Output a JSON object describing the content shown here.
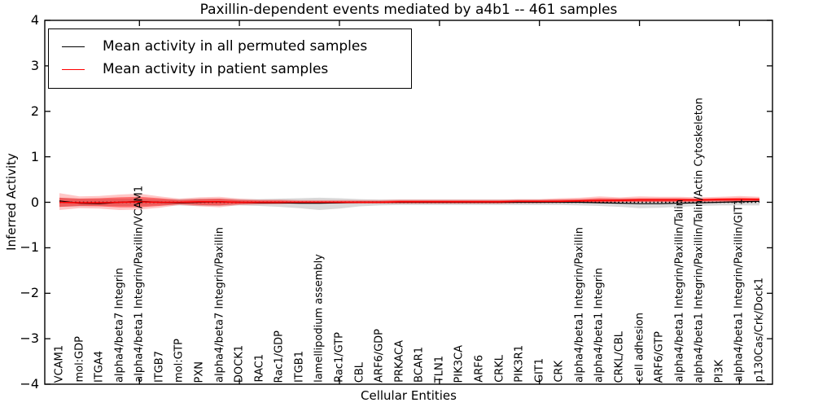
{
  "figure": {
    "title": "Paxillin-dependent events mediated by a4b1 -- 461 samples",
    "xlabel": "Cellular Entities",
    "ylabel": "Inferred Activity"
  },
  "legend": {
    "entries": [
      {
        "label": "Mean activity in all permuted samples",
        "color": "#000000"
      },
      {
        "label": "Mean activity in patient samples",
        "color": "#ff0000"
      }
    ]
  },
  "chart_data": {
    "type": "line",
    "title": "Paxillin-dependent events mediated by a4b1 -- 461 samples",
    "xlabel": "Cellular Entities",
    "ylabel": "Inferred Activity",
    "ylim": [
      -4,
      4
    ],
    "yticks": [
      -4,
      -3,
      -2,
      -1,
      0,
      1,
      2,
      3,
      4
    ],
    "yticklabels": [
      "−4",
      "−3",
      "−2",
      "−1",
      "0",
      "1",
      "2",
      "3",
      "4"
    ],
    "grid": false,
    "legend_position": "upper left",
    "x_major_tick_indices": [
      4,
      9,
      14,
      19,
      24,
      29,
      34
    ],
    "zero_line": {
      "value": 0,
      "style": "dotted",
      "color": "#000000"
    },
    "categories": [
      "VCAM1",
      "mol:GDP",
      "ITGA4",
      "alpha4/beta7 Integrin",
      "alpha4/beta1 Integrin/Paxillin/VCAM1",
      "ITGB7",
      "mol:GTP",
      "PXN",
      "alpha4/beta7 Integrin/Paxillin",
      "DOCK1",
      "RAC1",
      "Rac1/GDP",
      "ITGB1",
      "lamellipodium assembly",
      "Rac1/GTP",
      "CBL",
      "ARF6/GDP",
      "PRKACA",
      "BCAR1",
      "TLN1",
      "PIK3CA",
      "ARF6",
      "CRKL",
      "PIK3R1",
      "GIT1",
      "CRK",
      "alpha4/beta1 Integrin/Paxillin",
      "alpha4/beta1 Integrin",
      "CRKL/CBL",
      "cell adhesion",
      "ARF6/GTP",
      "alpha4/beta1 Integrin/Paxillin/Talin",
      "alpha4/beta1 Integrin/Paxillin/Talin/Actin Cytoskeleton",
      "PI3K",
      "alpha4/beta1 Integrin/Paxillin/GIT1",
      "p130Cas/Crk/Dock1"
    ],
    "series": [
      {
        "name": "Mean activity in all permuted samples",
        "color": "#000000",
        "style": "solid",
        "values": [
          0.03,
          -0.02,
          -0.03,
          0.0,
          0.02,
          0.0,
          -0.01,
          0.0,
          0.01,
          0.0,
          -0.01,
          -0.01,
          -0.02,
          -0.02,
          -0.01,
          0.0,
          0.0,
          0.0,
          0.0,
          0.0,
          0.0,
          0.0,
          0.0,
          0.0,
          0.0,
          0.0,
          0.0,
          -0.01,
          -0.02,
          -0.03,
          -0.03,
          -0.02,
          -0.01,
          0.0,
          0.01,
          0.02
        ]
      },
      {
        "name": "Mean activity in patient samples",
        "color": "#ff0000",
        "style": "solid",
        "values": [
          0.0,
          -0.01,
          -0.01,
          0.0,
          0.01,
          0.0,
          0.0,
          0.01,
          0.01,
          0.0,
          0.0,
          0.0,
          0.0,
          0.0,
          0.0,
          0.0,
          0.0,
          0.01,
          0.01,
          0.01,
          0.01,
          0.01,
          0.01,
          0.02,
          0.02,
          0.02,
          0.03,
          0.04,
          0.04,
          0.05,
          0.05,
          0.05,
          0.05,
          0.06,
          0.06,
          0.06
        ]
      }
    ],
    "bands": [
      {
        "name": "permuted-samples-range",
        "color": "#000000",
        "opacity": 0.15,
        "lower": [
          -0.1,
          -0.09,
          -0.08,
          -0.08,
          -0.08,
          -0.07,
          -0.07,
          -0.08,
          -0.08,
          -0.07,
          -0.08,
          -0.1,
          -0.13,
          -0.17,
          -0.14,
          -0.09,
          -0.07,
          -0.06,
          -0.06,
          -0.06,
          -0.06,
          -0.06,
          -0.06,
          -0.06,
          -0.06,
          -0.06,
          -0.07,
          -0.08,
          -0.1,
          -0.13,
          -0.12,
          -0.1,
          -0.08,
          -0.07,
          -0.07,
          -0.07
        ],
        "upper": [
          0.1,
          0.08,
          0.08,
          0.08,
          0.08,
          0.07,
          0.07,
          0.08,
          0.08,
          0.07,
          0.07,
          0.08,
          0.09,
          0.1,
          0.09,
          0.07,
          0.06,
          0.06,
          0.06,
          0.06,
          0.06,
          0.06,
          0.06,
          0.06,
          0.06,
          0.06,
          0.06,
          0.07,
          0.08,
          0.08,
          0.08,
          0.08,
          0.07,
          0.07,
          0.07,
          0.08
        ]
      },
      {
        "name": "patient-samples-range-outer",
        "color": "#ff0000",
        "opacity": 0.22,
        "lower": [
          -0.17,
          -0.13,
          -0.14,
          -0.17,
          -0.16,
          -0.12,
          -0.06,
          -0.09,
          -0.11,
          -0.06,
          -0.05,
          -0.04,
          -0.03,
          -0.03,
          -0.03,
          -0.03,
          -0.03,
          -0.03,
          -0.03,
          -0.03,
          -0.03,
          -0.03,
          -0.03,
          -0.02,
          -0.02,
          -0.01,
          -0.01,
          -0.01,
          0.0,
          0.0,
          0.0,
          0.0,
          0.01,
          0.01,
          0.01,
          0.01
        ],
        "upper": [
          0.2,
          0.13,
          0.14,
          0.17,
          0.19,
          0.13,
          0.08,
          0.11,
          0.12,
          0.08,
          0.06,
          0.06,
          0.05,
          0.05,
          0.05,
          0.05,
          0.05,
          0.06,
          0.06,
          0.06,
          0.06,
          0.06,
          0.06,
          0.07,
          0.07,
          0.09,
          0.1,
          0.13,
          0.11,
          0.13,
          0.12,
          0.12,
          0.11,
          0.12,
          0.14,
          0.12
        ]
      },
      {
        "name": "patient-samples-range-inner",
        "color": "#ff0000",
        "opacity": 0.45,
        "lower": [
          -0.1,
          -0.08,
          -0.09,
          -0.11,
          -0.11,
          -0.08,
          -0.04,
          -0.06,
          -0.07,
          -0.04,
          -0.03,
          -0.03,
          -0.02,
          -0.02,
          -0.02,
          -0.02,
          -0.02,
          -0.02,
          -0.02,
          -0.02,
          -0.02,
          -0.02,
          -0.02,
          -0.01,
          -0.01,
          0.0,
          0.0,
          0.0,
          0.01,
          0.01,
          0.01,
          0.01,
          0.02,
          0.02,
          0.02,
          0.02
        ],
        "upper": [
          0.1,
          0.08,
          0.09,
          0.11,
          0.12,
          0.09,
          0.05,
          0.07,
          0.08,
          0.05,
          0.04,
          0.04,
          0.03,
          0.03,
          0.03,
          0.03,
          0.03,
          0.04,
          0.04,
          0.04,
          0.04,
          0.04,
          0.04,
          0.05,
          0.05,
          0.06,
          0.07,
          0.09,
          0.08,
          0.09,
          0.09,
          0.09,
          0.08,
          0.09,
          0.1,
          0.09
        ]
      }
    ]
  }
}
